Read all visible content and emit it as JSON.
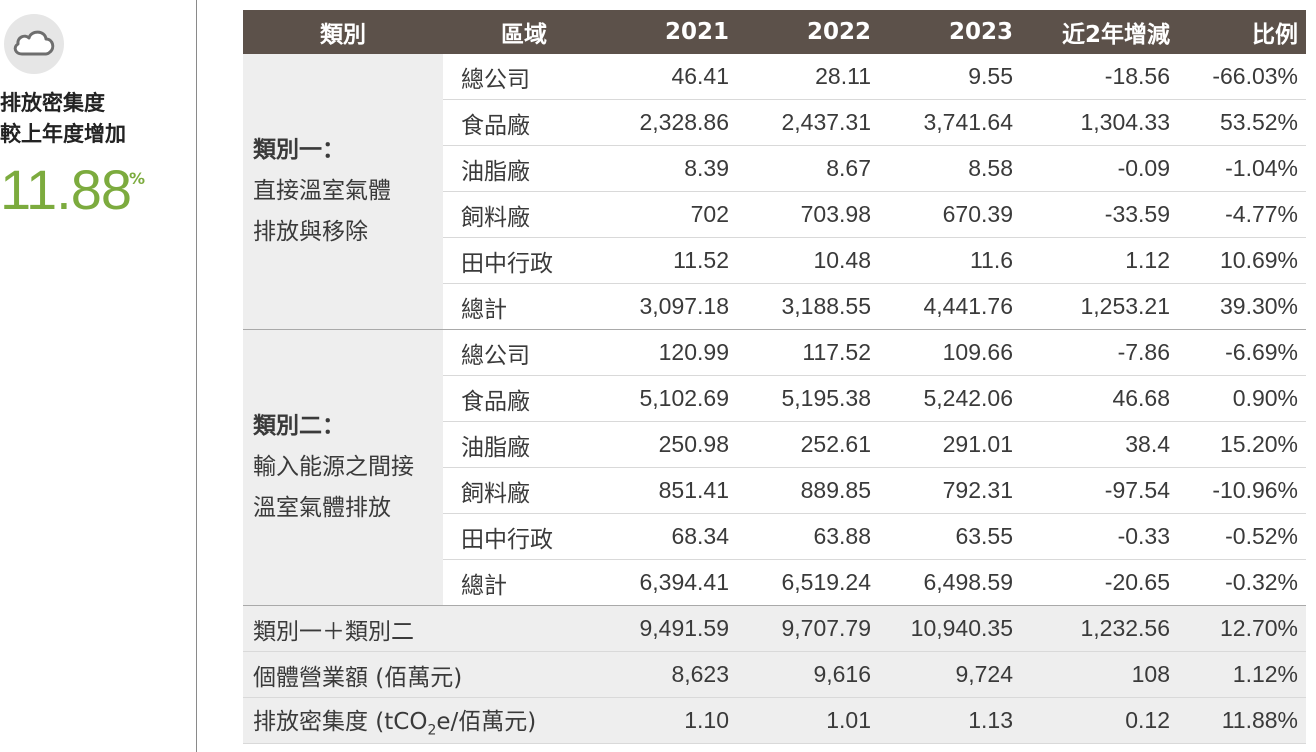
{
  "sidebar": {
    "icon": "cloud-icon",
    "label": "排放密集度\n較上年度增加",
    "value": "11.88",
    "unit": "%"
  },
  "colors": {
    "header_bg": "#5c514a",
    "accent_green": "#7cab3e",
    "group_bg": "#eeeeee"
  },
  "table": {
    "headers": [
      "類別",
      "區域",
      "2021",
      "2022",
      "2023",
      "近2年增減",
      "比例"
    ],
    "groups": [
      {
        "title": "類別一：",
        "lines": [
          "直接溫室氣體",
          "排放與移除"
        ],
        "rows": [
          {
            "region": "總公司",
            "values": [
              "46.41",
              "28.11",
              "9.55",
              "-18.56",
              "-66.03%"
            ]
          },
          {
            "region": "食品廠",
            "values": [
              "2,328.86",
              "2,437.31",
              "3,741.64",
              "1,304.33",
              "53.52%"
            ]
          },
          {
            "region": "油脂廠",
            "values": [
              "8.39",
              "8.67",
              "8.58",
              "-0.09",
              "-1.04%"
            ]
          },
          {
            "region": "飼料廠",
            "values": [
              "702",
              "703.98",
              "670.39",
              "-33.59",
              "-4.77%"
            ]
          },
          {
            "region": "田中行政",
            "values": [
              "11.52",
              "10.48",
              "11.6",
              "1.12",
              "10.69%"
            ]
          },
          {
            "region": "總計",
            "values": [
              "3,097.18",
              "3,188.55",
              "4,441.76",
              "1,253.21",
              "39.30%"
            ]
          }
        ]
      },
      {
        "title": "類別二：",
        "lines": [
          "輸入能源之間接",
          "溫室氣體排放"
        ],
        "rows": [
          {
            "region": "總公司",
            "values": [
              "120.99",
              "117.52",
              "109.66",
              "-7.86",
              "-6.69%"
            ]
          },
          {
            "region": "食品廠",
            "values": [
              "5,102.69",
              "5,195.38",
              "5,242.06",
              "46.68",
              "0.90%"
            ]
          },
          {
            "region": "油脂廠",
            "values": [
              "250.98",
              "252.61",
              "291.01",
              "38.4",
              "15.20%"
            ]
          },
          {
            "region": "飼料廠",
            "values": [
              "851.41",
              "889.85",
              "792.31",
              "-97.54",
              "-10.96%"
            ]
          },
          {
            "region": "田中行政",
            "values": [
              "68.34",
              "63.88",
              "63.55",
              "-0.33",
              "-0.52%"
            ]
          },
          {
            "region": "總計",
            "values": [
              "6,394.41",
              "6,519.24",
              "6,498.59",
              "-20.65",
              "-0.32%"
            ]
          }
        ]
      }
    ],
    "summary": [
      {
        "label": "類別一＋類別二",
        "values": [
          "9,491.59",
          "9,707.79",
          "10,940.35",
          "1,232.56",
          "12.70%"
        ]
      },
      {
        "label": "個體營業額 (佰萬元)",
        "values": [
          "8,623",
          "9,616",
          "9,724",
          "108",
          "1.12%"
        ]
      },
      {
        "label_pre": "排放密集度 (tCO",
        "label_sub": "2",
        "label_post": "e/佰萬元)",
        "values": [
          "1.10",
          "1.01",
          "1.13",
          "0.12",
          "11.88%"
        ]
      }
    ]
  }
}
